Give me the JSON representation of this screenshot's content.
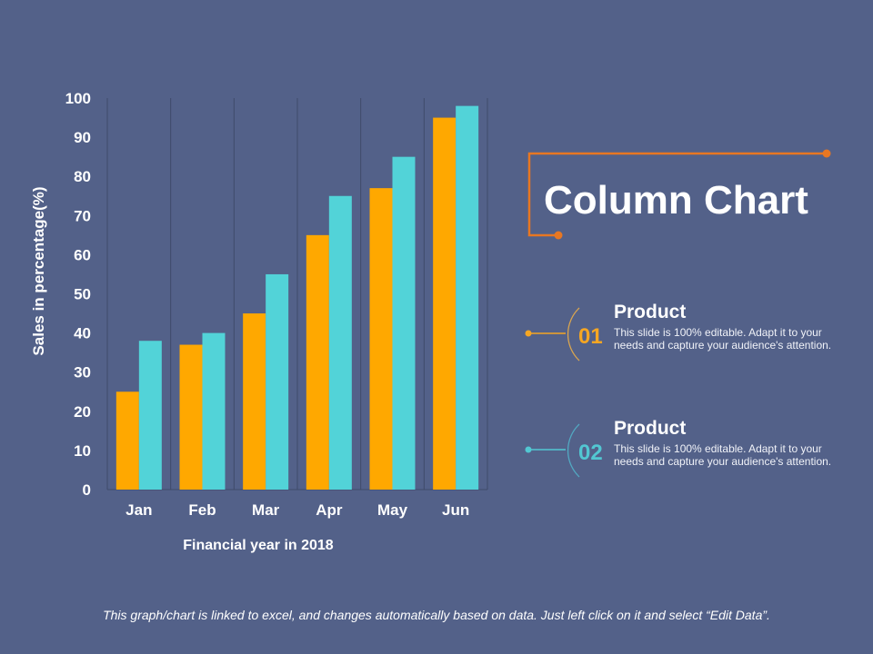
{
  "chart_data": {
    "type": "bar",
    "title": "",
    "xlabel": "Financial year in 2018",
    "ylabel": "Sales in percentage(%)",
    "ylim": [
      0,
      100
    ],
    "yticks": [
      0,
      10,
      20,
      30,
      40,
      50,
      60,
      70,
      80,
      90,
      100
    ],
    "categories": [
      "Jan",
      "Feb",
      "Mar",
      "Apr",
      "May",
      "Jun"
    ],
    "series": [
      {
        "values": [
          25,
          37,
          45,
          65,
          77,
          95
        ],
        "color": "#FFA800"
      },
      {
        "values": [
          38,
          40,
          55,
          75,
          85,
          98
        ],
        "color": "#52D3D8"
      }
    ],
    "grid": "vertical category separators",
    "legend": "none"
  },
  "slide": {
    "title": "Column Chart",
    "accent_color": "#E87722",
    "items": [
      {
        "number": "01",
        "heading": "Product",
        "text": "This slide is 100% editable. Adapt it to your needs and capture your audience's attention.",
        "color": "#F5A623"
      },
      {
        "number": "02",
        "heading": "Product",
        "text": "This slide is 100% editable. Adapt it to your needs and capture your audience's attention.",
        "color": "#52C7D2"
      }
    ],
    "footer": "This graph/chart is linked to excel, and changes automatically based on data. Just left click on it and select “Edit Data”."
  }
}
